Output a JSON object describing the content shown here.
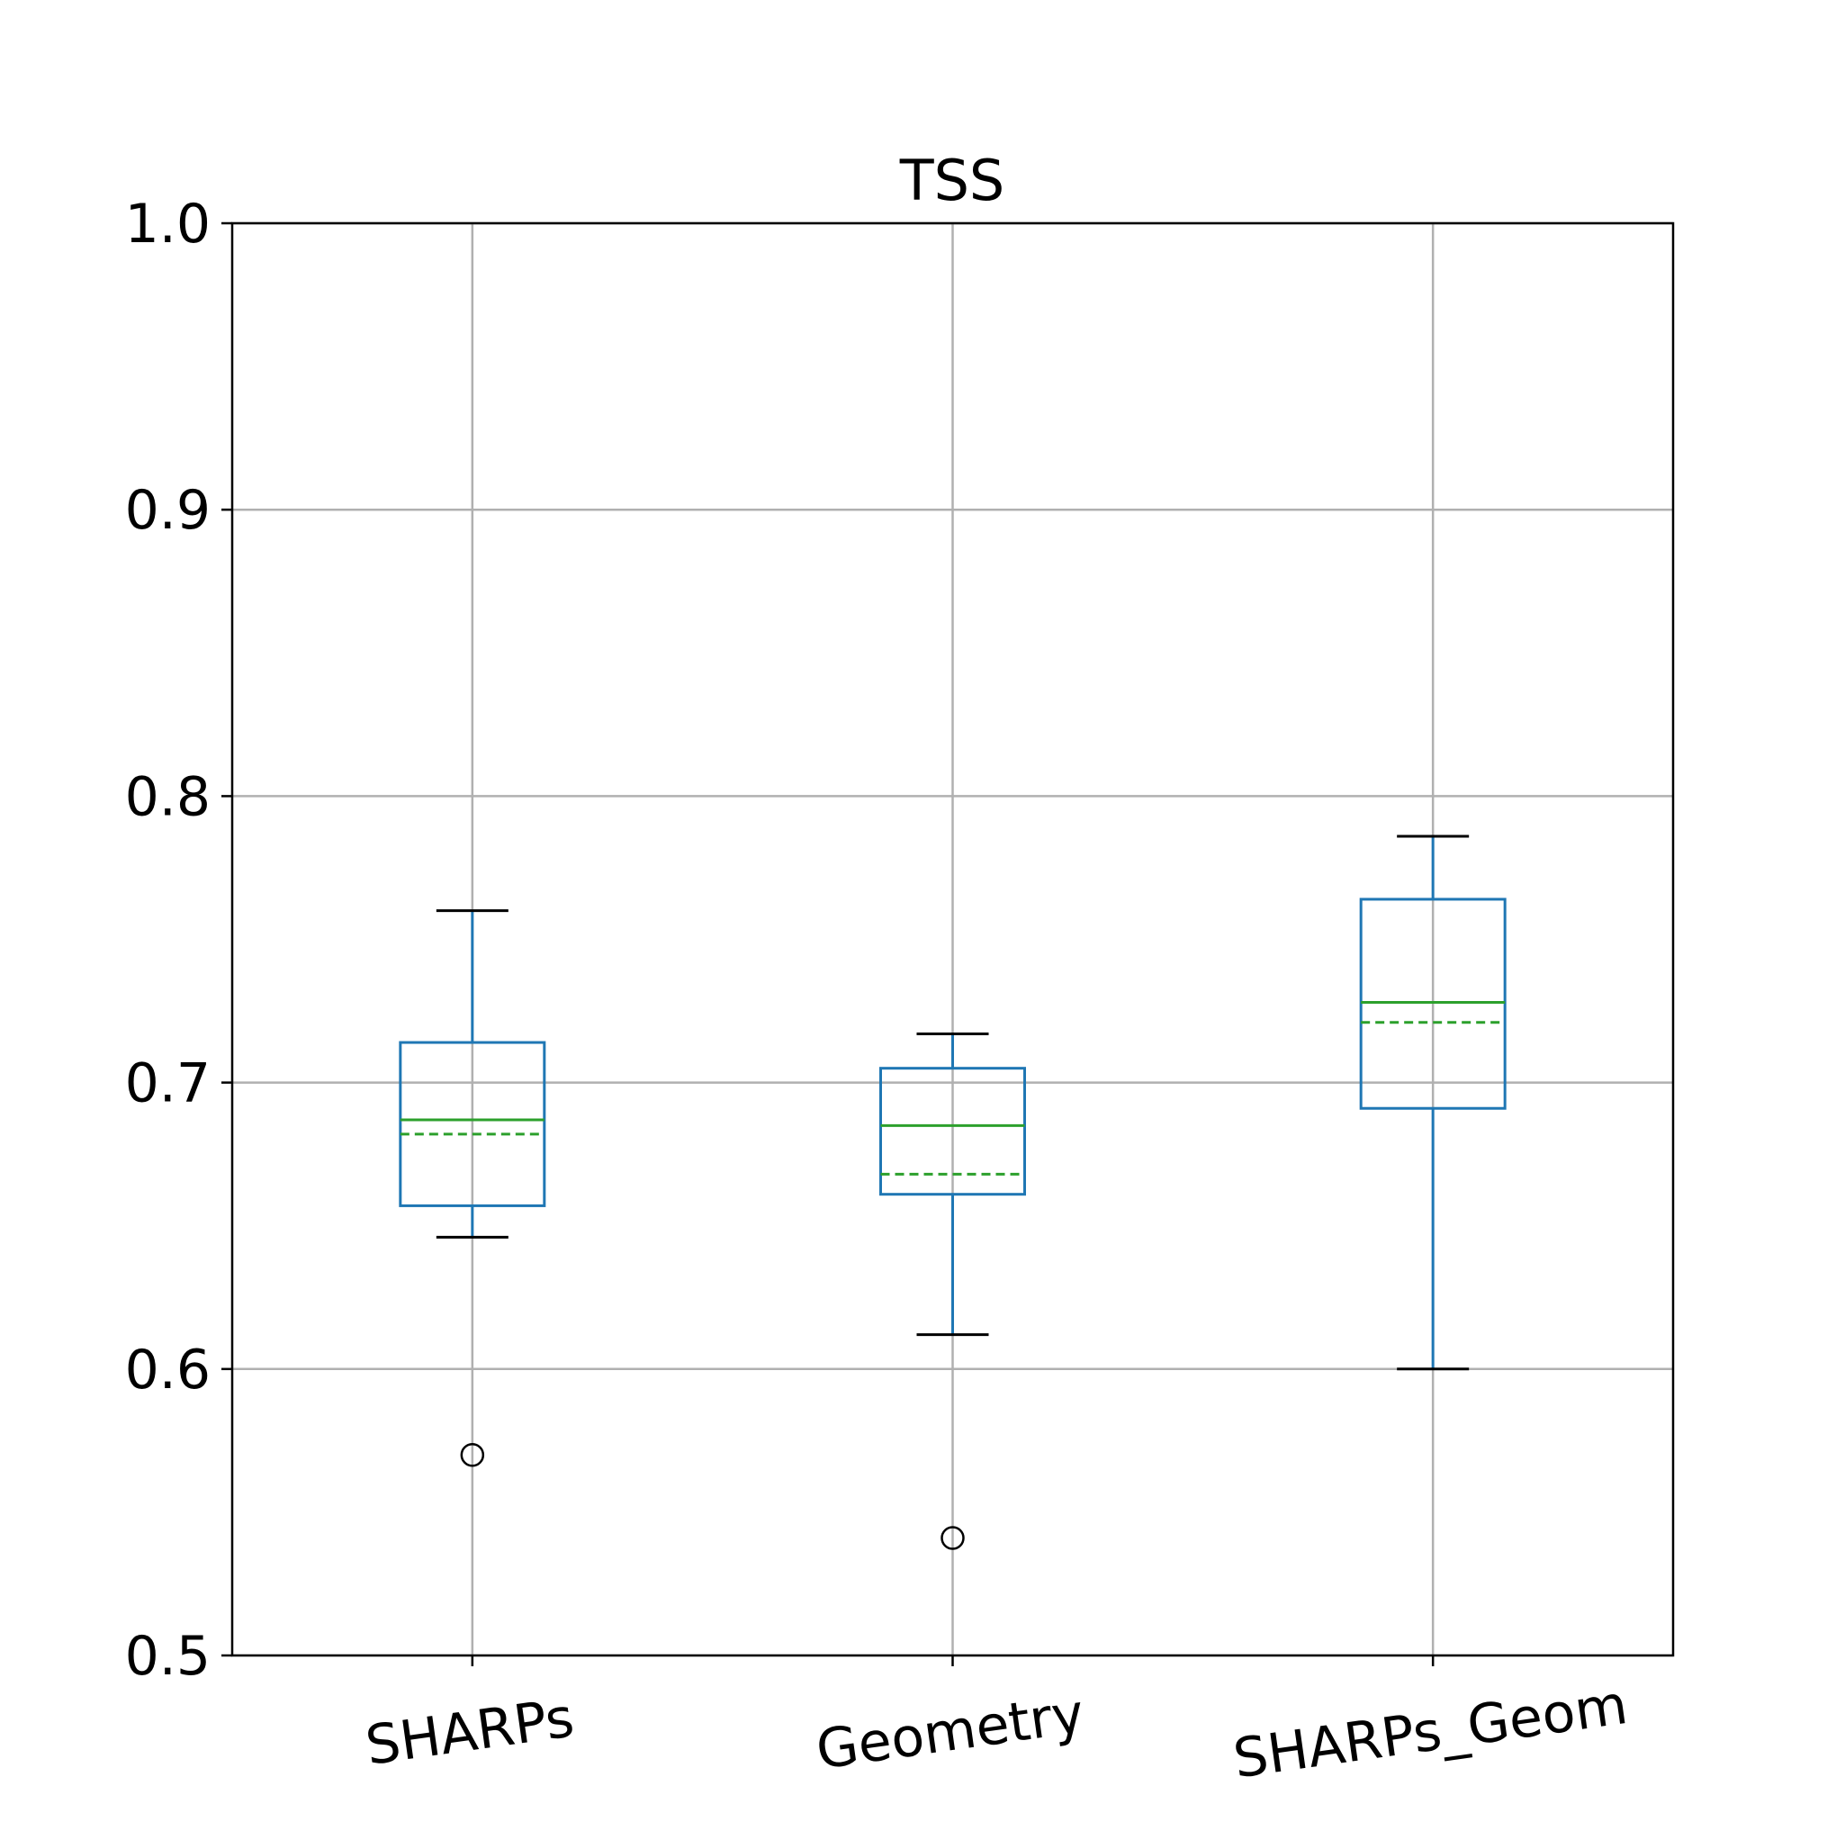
{
  "chart_data": {
    "type": "box",
    "title": "TSS",
    "xlabel": "",
    "ylabel": "",
    "ylim": [
      0.5,
      1.0
    ],
    "yticks": [
      "0.5",
      "0.6",
      "0.7",
      "0.8",
      "0.9",
      "1.0"
    ],
    "grid": true,
    "categories": [
      "SHARPs",
      "Geometry",
      "SHARPs_Geom"
    ],
    "boxes": [
      {
        "name": "SHARPs",
        "whisker_low": 0.646,
        "q1": 0.657,
        "median": 0.687,
        "mean": 0.682,
        "q3": 0.714,
        "whisker_high": 0.76,
        "outliers": [
          0.57
        ]
      },
      {
        "name": "Geometry",
        "whisker_low": 0.612,
        "q1": 0.661,
        "median": 0.685,
        "mean": 0.668,
        "q3": 0.705,
        "whisker_high": 0.717,
        "outliers": [
          0.541
        ]
      },
      {
        "name": "SHARPs_Geom",
        "whisker_low": 0.6,
        "q1": 0.691,
        "median": 0.728,
        "mean": 0.721,
        "q3": 0.764,
        "whisker_high": 0.786,
        "outliers": []
      }
    ],
    "colors": {
      "box": "#1f77b4",
      "median": "#2ca02c",
      "mean": "#2ca02c",
      "cap": "#000000",
      "outlier": "#000000",
      "grid": "#b0b0b0"
    }
  }
}
